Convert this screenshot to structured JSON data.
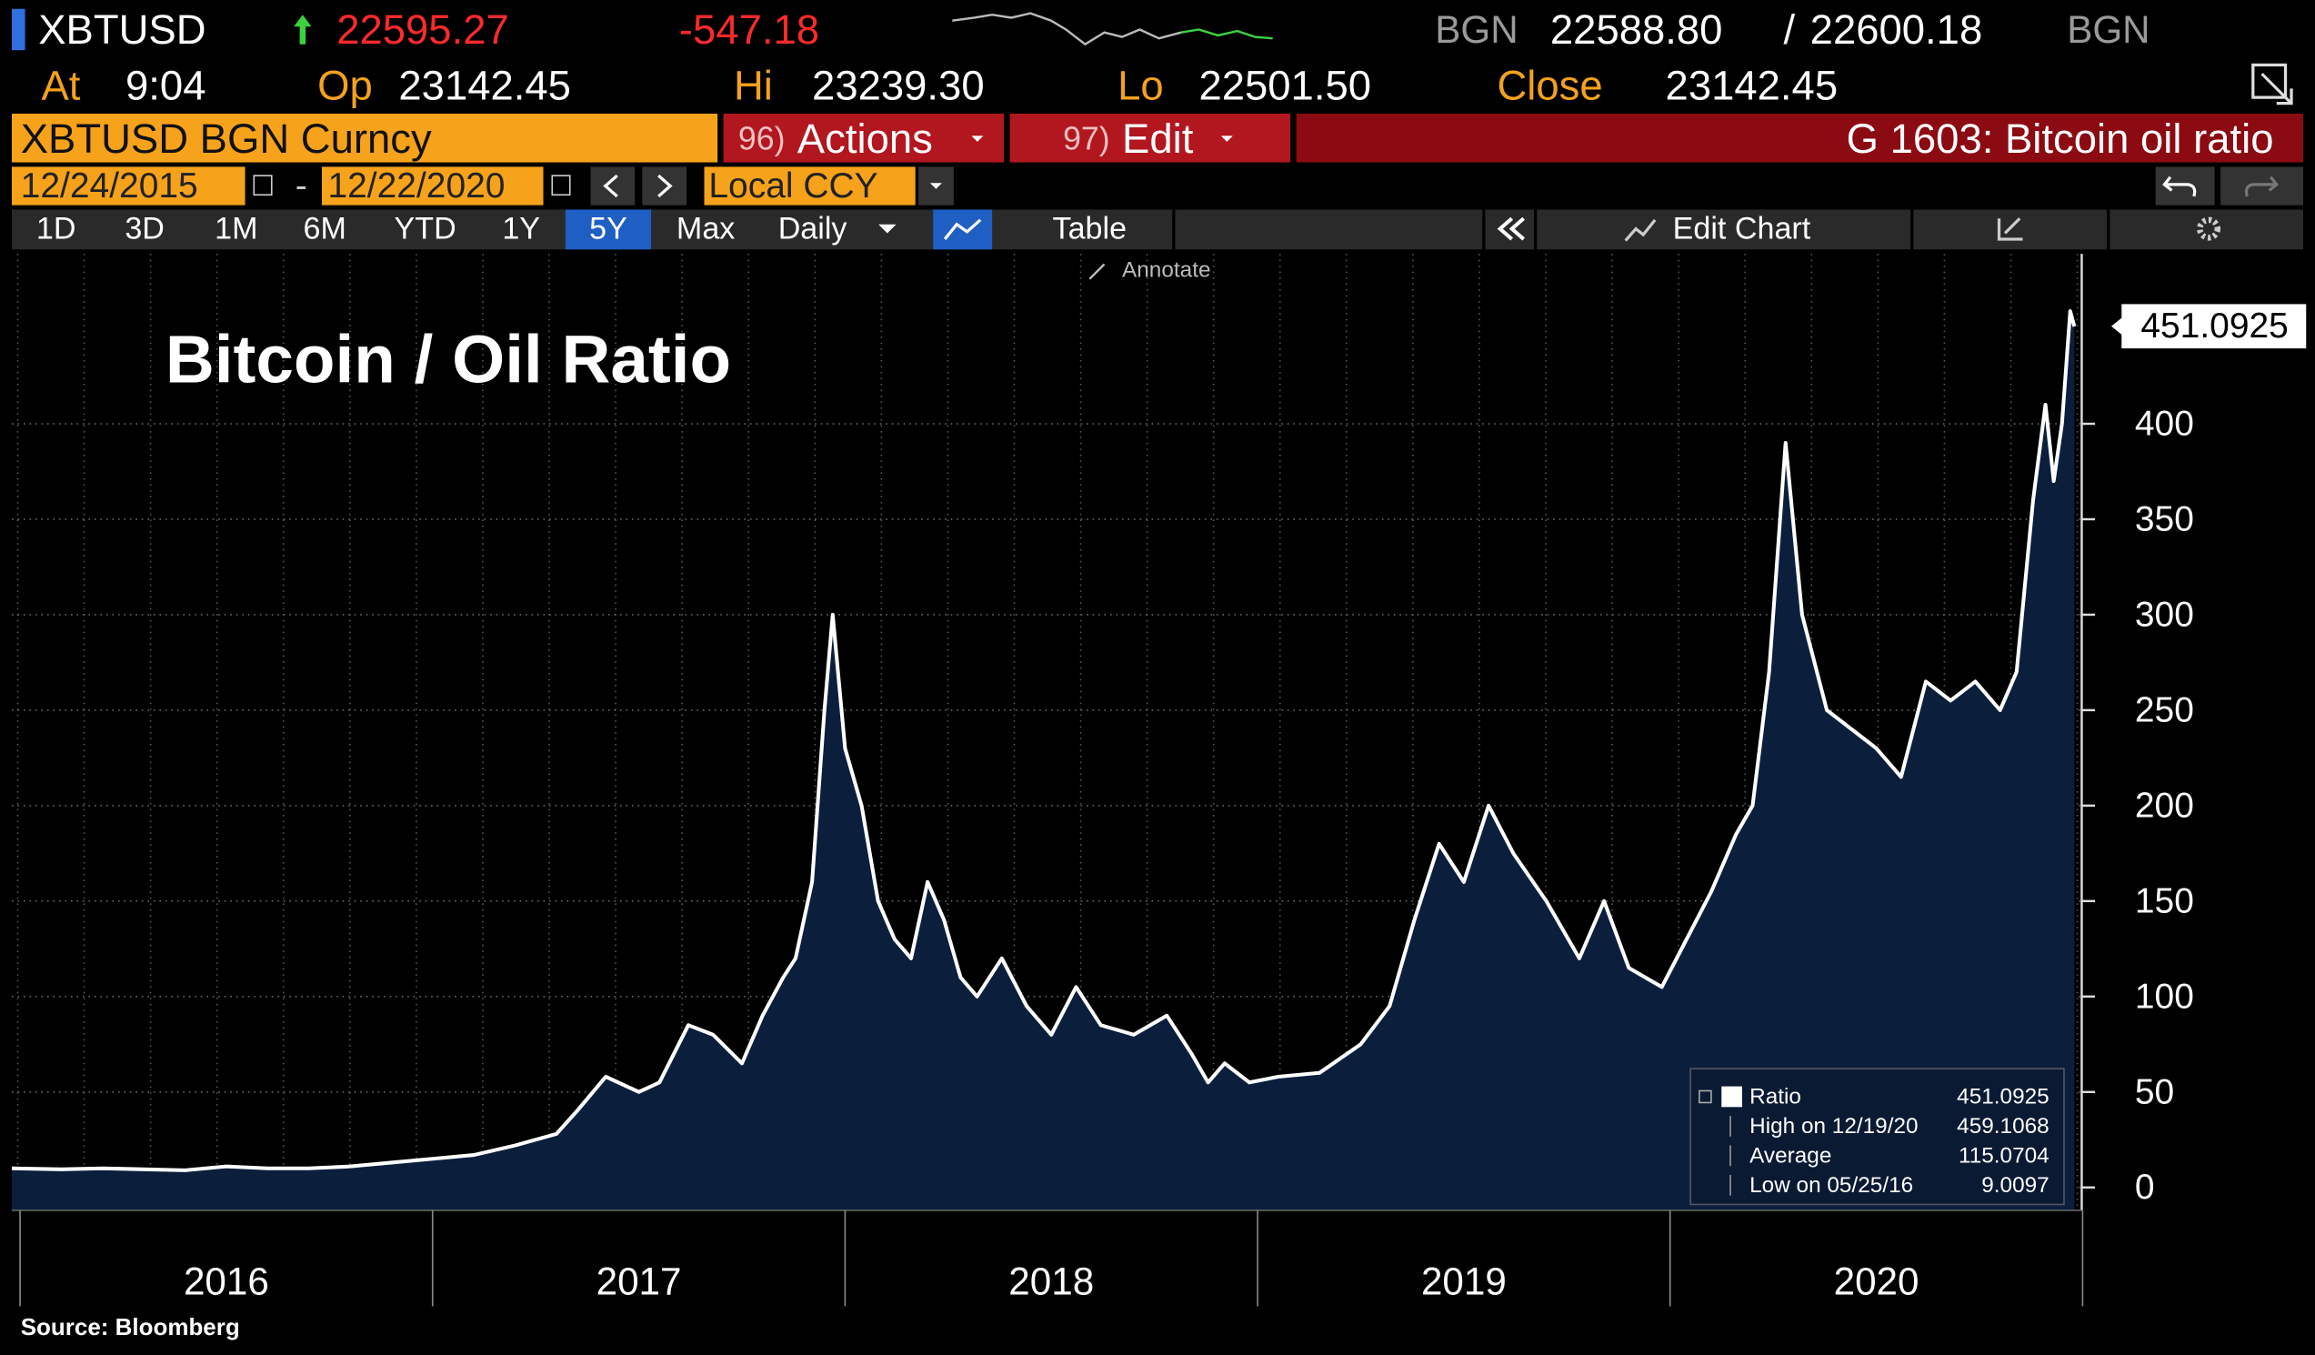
{
  "header": {
    "symbol": "XBTUSD",
    "last": "22595.27",
    "change": "-547.18",
    "bid_source": "BGN",
    "bid": "22588.80",
    "separator": "/",
    "ask": "22600.18",
    "ask_source": "BGN",
    "time_label": "At",
    "time": "9:04",
    "open_label": "Op",
    "open": "23142.45",
    "high_label": "Hi",
    "high": "23239.30",
    "low_label": "Lo",
    "low": "22501.50",
    "close_label": "Close",
    "close": "23142.45"
  },
  "toolbar": {
    "security": "XBTUSD BGN Curncy",
    "actions_num": "96)",
    "actions": "Actions",
    "edit_num": "97)",
    "edit": "Edit",
    "chart_name": "G 1603: Bitcoin oil ratio",
    "start_date": "12/24/2015",
    "date_separator": "-",
    "end_date": "12/22/2020",
    "currency": "Local CCY",
    "periods": [
      "1D",
      "3D",
      "1M",
      "6M",
      "YTD",
      "1Y",
      "5Y",
      "Max"
    ],
    "active_period": "5Y",
    "frequency": "Daily",
    "table": "Table",
    "edit_chart": "Edit Chart",
    "annotate": "Annotate"
  },
  "chart_data": {
    "type": "area",
    "title": "Bitcoin / Oil Ratio",
    "x": [
      2015.98,
      2016.1,
      2016.2,
      2016.3,
      2016.4,
      2016.5,
      2016.6,
      2016.7,
      2016.8,
      2016.9,
      2017.0,
      2017.1,
      2017.2,
      2017.3,
      2017.35,
      2017.42,
      2017.5,
      2017.55,
      2017.62,
      2017.68,
      2017.75,
      2017.8,
      2017.85,
      2017.88,
      2017.92,
      2017.95,
      2017.97,
      2018.0,
      2018.04,
      2018.08,
      2018.12,
      2018.16,
      2018.2,
      2018.24,
      2018.28,
      2018.32,
      2018.38,
      2018.44,
      2018.5,
      2018.56,
      2018.62,
      2018.7,
      2018.78,
      2018.84,
      2018.88,
      2018.92,
      2018.98,
      2019.05,
      2019.15,
      2019.25,
      2019.32,
      2019.38,
      2019.44,
      2019.5,
      2019.56,
      2019.62,
      2019.7,
      2019.78,
      2019.84,
      2019.9,
      2019.98,
      2020.04,
      2020.1,
      2020.16,
      2020.2,
      2020.24,
      2020.28,
      2020.32,
      2020.38,
      2020.44,
      2020.5,
      2020.56,
      2020.62,
      2020.68,
      2020.74,
      2020.8,
      2020.84,
      2020.88,
      2020.91,
      2020.93,
      2020.95,
      2020.97,
      2020.98
    ],
    "series": [
      {
        "name": "Ratio",
        "color": "#ffffff",
        "fill": "#0b1f3c",
        "values": [
          10,
          9.5,
          10,
          9.5,
          9.0,
          11,
          10,
          10,
          11,
          13,
          15,
          17,
          22,
          28,
          40,
          58,
          50,
          55,
          85,
          80,
          65,
          90,
          110,
          120,
          160,
          250,
          300,
          230,
          200,
          150,
          130,
          120,
          160,
          140,
          110,
          100,
          120,
          95,
          80,
          105,
          85,
          80,
          90,
          70,
          55,
          65,
          55,
          58,
          60,
          75,
          95,
          140,
          180,
          160,
          200,
          175,
          150,
          120,
          150,
          115,
          105,
          130,
          155,
          185,
          200,
          270,
          390,
          300,
          250,
          240,
          230,
          215,
          265,
          255,
          265,
          250,
          270,
          360,
          410,
          370,
          400,
          459,
          451
        ]
      }
    ],
    "xlim": [
      2015.98,
      2020.98
    ],
    "xticks": [
      {
        "value": 2016.5,
        "label": "2016"
      },
      {
        "value": 2017.5,
        "label": "2017"
      },
      {
        "value": 2018.5,
        "label": "2018"
      },
      {
        "value": 2019.5,
        "label": "2019"
      },
      {
        "value": 2020.5,
        "label": "2020"
      }
    ],
    "ylim": [
      -12,
      489
    ],
    "yticks": [
      0,
      50,
      100,
      150,
      200,
      250,
      300,
      350,
      400
    ],
    "grid": true,
    "last_value": 451.0925,
    "legend_stats": [
      {
        "label": "High on 12/19/20",
        "value": 459.1068
      },
      {
        "label": "Average",
        "value": 115.0704
      },
      {
        "label": "Low on 05/25/16",
        "value": 9.0097
      }
    ]
  },
  "footer": {
    "source": "Source: Bloomberg"
  }
}
